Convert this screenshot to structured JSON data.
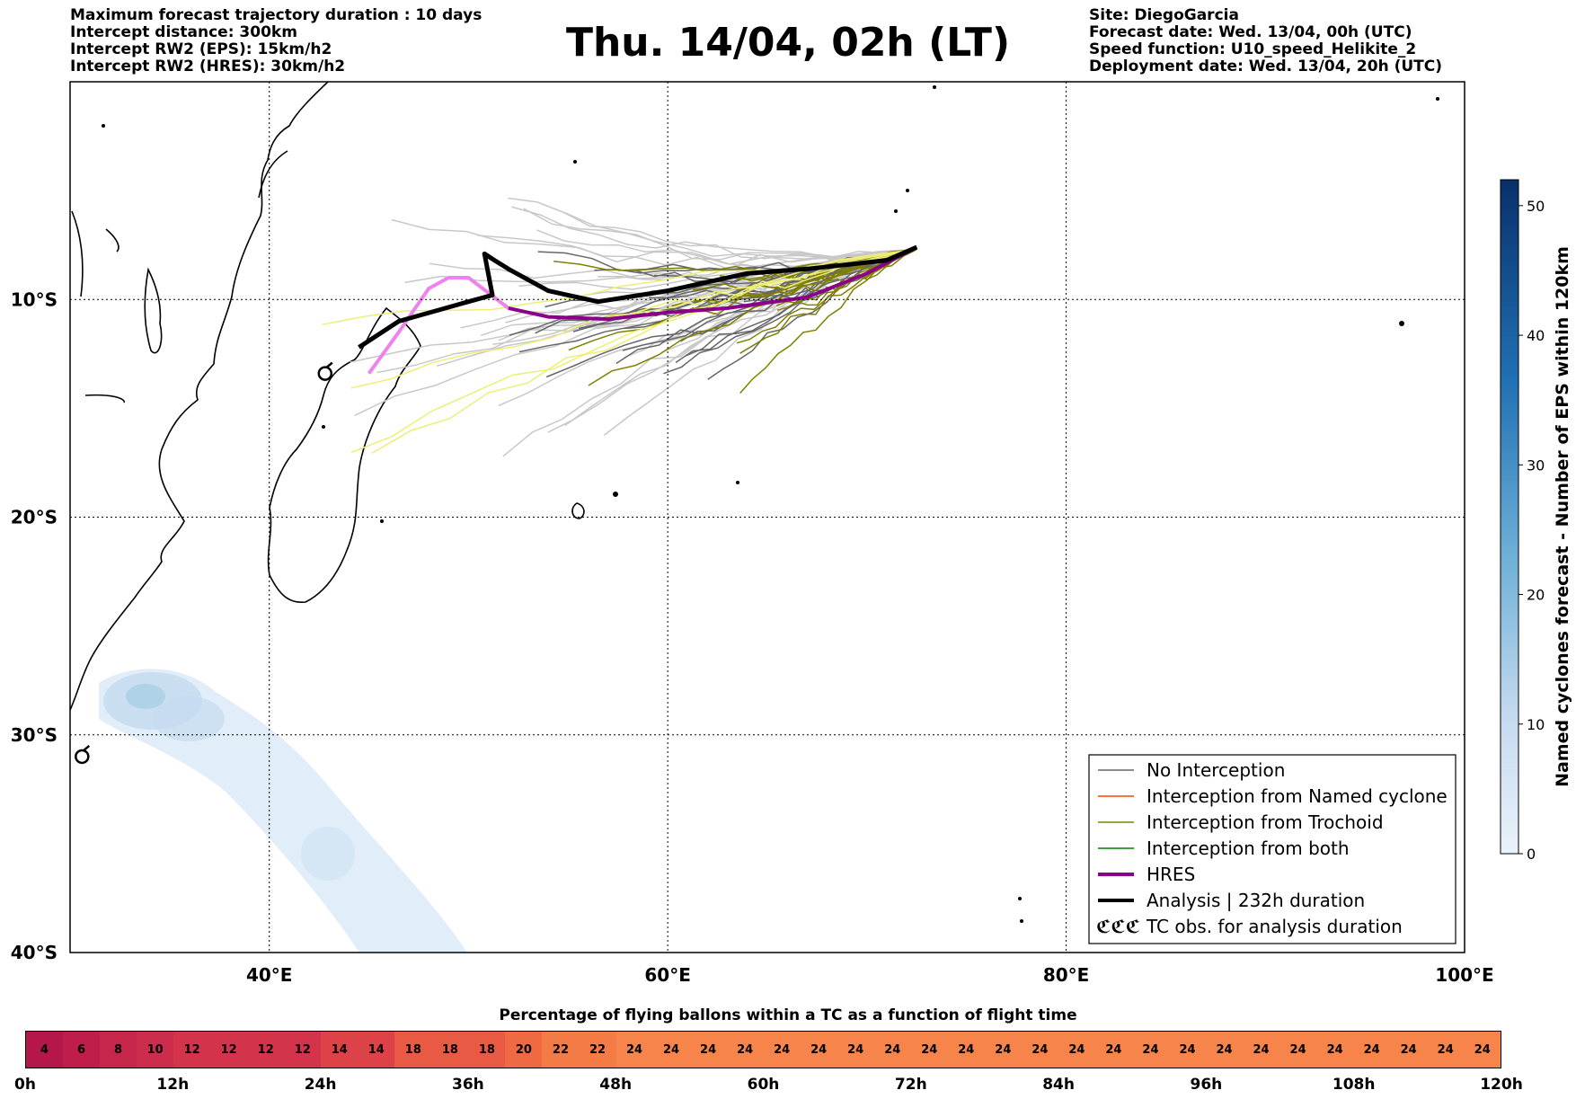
{
  "header": {
    "left_lines": [
      "Maximum forecast trajectory duration : 10 days",
      "Intercept distance: 300km",
      "Intercept RW2 (EPS):  15km/h2",
      "Intercept RW2 (HRES): 30km/h2"
    ],
    "title": "Thu. 14/04, 02h (LT)",
    "right_lines": [
      "Site: DiegoGarcia",
      "Forecast date: Wed. 13/04, 00h (UTC)",
      "Speed function: U10_speed_Helikite_2",
      "Deployment date: Wed. 13/04, 20h (UTC)"
    ]
  },
  "map": {
    "lon_range": [
      30,
      100
    ],
    "lat_range": [
      -40,
      0
    ],
    "x_ticks": [
      {
        "lon": 40,
        "label": "40°E"
      },
      {
        "lon": 60,
        "label": "60°E"
      },
      {
        "lon": 80,
        "label": "80°E"
      },
      {
        "lon": 100,
        "label": "100°E"
      }
    ],
    "y_ticks": [
      {
        "lat": -10,
        "label": "10°S"
      },
      {
        "lat": -20,
        "label": "20°S"
      },
      {
        "lat": -30,
        "label": "30°S"
      },
      {
        "lat": -40,
        "label": "40°S"
      }
    ],
    "grid": "dotted",
    "colors": {
      "no_interception": "#666666",
      "named_cyclone": "#ff4500",
      "trochoid": "#808000",
      "both": "#008000",
      "hres": "#8b008b",
      "hres_early": "#ee82ee",
      "analysis": "#000000",
      "ensemble_light": "#c8c8c8",
      "ensemble_yellow": "#eeee77"
    },
    "analysis_track": [
      [
        72.5,
        -7.6
      ],
      [
        71,
        -8.2
      ],
      [
        67,
        -8.6
      ],
      [
        64,
        -8.8
      ],
      [
        60,
        -9.6
      ],
      [
        56.5,
        -10.1
      ],
      [
        54,
        -9.6
      ],
      [
        52,
        -8.6
      ],
      [
        51.3,
        -8.2
      ],
      [
        50.8,
        -7.9
      ],
      [
        51.2,
        -9.8
      ],
      [
        50,
        -10.1
      ],
      [
        46.5,
        -11.0
      ],
      [
        44.5,
        -12.2
      ]
    ],
    "hres_track": [
      [
        72.5,
        -7.6
      ],
      [
        70,
        -8.8
      ],
      [
        67,
        -9.9
      ],
      [
        63,
        -10.4
      ],
      [
        60,
        -10.6
      ],
      [
        57,
        -10.9
      ],
      [
        54,
        -10.8
      ],
      [
        52,
        -10.4
      ],
      [
        50,
        -9.0
      ],
      [
        49,
        -9.0
      ],
      [
        48,
        -9.5
      ],
      [
        46.5,
        -11.5
      ],
      [
        45,
        -13.4
      ]
    ],
    "tc_obs": [
      [
        42.8,
        -13.4
      ],
      [
        30.6,
        -31.0
      ]
    ],
    "legend": [
      {
        "label": "No Interception",
        "style": "no_interception"
      },
      {
        "label": "Interception from Named cyclone",
        "style": "named_cyclone"
      },
      {
        "label": "Interception from Trochoid",
        "style": "trochoid"
      },
      {
        "label": "Interception from both",
        "style": "both"
      },
      {
        "label": "HRES",
        "style": "hres"
      },
      {
        "label": "Analysis | 232h duration",
        "style": "analysis"
      },
      {
        "label": "TC obs. for analysis duration",
        "style": "tc_obs"
      }
    ],
    "tc_obs_symbol": "ℭℭℭ"
  },
  "colorbar_right": {
    "title": "Named cyclones forecast - Number of EPS within 120km",
    "range": [
      0,
      52
    ],
    "ticks": [
      {
        "value": 0,
        "label": "0"
      },
      {
        "value": 10,
        "label": "10"
      },
      {
        "value": 20,
        "label": "20"
      },
      {
        "value": 30,
        "label": "30"
      },
      {
        "value": 40,
        "label": "40"
      },
      {
        "value": 50,
        "label": "50"
      }
    ],
    "color_low": "#eaf2fb",
    "color_high": "#08306b"
  },
  "percentage_bar": {
    "title": "Percentage of flying ballons within a TC as a function of flight time",
    "values": [
      "4",
      "6",
      "8",
      "10",
      "12",
      "12",
      "12",
      "12",
      "14",
      "14",
      "18",
      "18",
      "18",
      "20",
      "22",
      "22",
      "24",
      "24",
      "24",
      "24",
      "24",
      "24",
      "24",
      "24",
      "24",
      "24",
      "24",
      "24",
      "24",
      "24",
      "24",
      "24",
      "24",
      "24",
      "24",
      "24",
      "24",
      "24",
      "24",
      "24"
    ],
    "colors": [
      "#b5174a",
      "#bf1e4a",
      "#c7264b",
      "#cc2d4c",
      "#d3334b",
      "#d3334b",
      "#d3334b",
      "#d3334b",
      "#dc4248",
      "#dc4248",
      "#e95a44",
      "#e95a44",
      "#e95a44",
      "#ef6a43",
      "#f47a46",
      "#f47a46",
      "#f6844b",
      "#f6844b",
      "#f6844b",
      "#f6844b",
      "#f6844b",
      "#f6844b",
      "#f6844b",
      "#f6844b",
      "#f6844b",
      "#f6844b",
      "#f6844b",
      "#f6844b",
      "#f6844b",
      "#f6844b",
      "#f6844b",
      "#f6844b",
      "#f6844b",
      "#f6844b",
      "#f6844b",
      "#f6844b",
      "#f6844b",
      "#f6844b",
      "#f6844b",
      "#f6844b"
    ],
    "tick_labels": [
      "0h",
      "12h",
      "24h",
      "36h",
      "48h",
      "60h",
      "72h",
      "84h",
      "96h",
      "108h",
      "120h"
    ]
  }
}
